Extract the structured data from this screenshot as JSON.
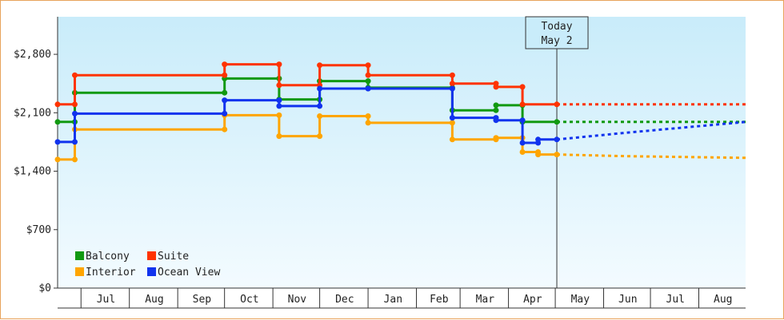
{
  "chart_data": {
    "type": "line",
    "step": true,
    "y_ticks": [
      "$0",
      "$700",
      "$1,400",
      "$2,100",
      "$2,800"
    ],
    "ylim": [
      0,
      3250
    ],
    "x_ticks": [
      "Jul",
      "Aug",
      "Sep",
      "Oct",
      "Nov",
      "Dec",
      "Jan",
      "Feb",
      "Mar",
      "Apr",
      "May",
      "Jun",
      "Jul",
      "Aug"
    ],
    "xlim": [
      "2018-06-16",
      "2019-08-31"
    ],
    "today": {
      "line1": "Today",
      "line2": "May 2",
      "date": "2019-05-02"
    },
    "legend_position": "bottom-left",
    "grid": false,
    "background": {
      "top": "#c9ecfa",
      "bottom": "#f3fbff"
    },
    "series": [
      {
        "name": "Balcony",
        "color": "#119911",
        "points": [
          [
            "2018-06-16",
            1990
          ],
          [
            "2018-06-27",
            1990
          ],
          [
            "2018-06-27",
            2340
          ],
          [
            "2018-10-01",
            2340
          ],
          [
            "2018-10-01",
            2510
          ],
          [
            "2018-11-05",
            2510
          ],
          [
            "2018-11-05",
            2260
          ],
          [
            "2018-12-01",
            2260
          ],
          [
            "2018-12-01",
            2480
          ],
          [
            "2019-01-01",
            2480
          ],
          [
            "2019-01-01",
            2400
          ],
          [
            "2019-02-24",
            2400
          ],
          [
            "2019-02-24",
            2130
          ],
          [
            "2019-03-24",
            2130
          ],
          [
            "2019-03-24",
            2190
          ],
          [
            "2019-04-10",
            2190
          ],
          [
            "2019-04-10",
            1990
          ],
          [
            "2019-05-02",
            1990
          ]
        ],
        "forecast": [
          [
            "2019-05-02",
            1990
          ],
          [
            "2019-08-31",
            1990
          ]
        ]
      },
      {
        "name": "Interior",
        "color": "#ffa500",
        "points": [
          [
            "2018-06-16",
            1540
          ],
          [
            "2018-06-27",
            1540
          ],
          [
            "2018-06-27",
            1900
          ],
          [
            "2018-10-01",
            1900
          ],
          [
            "2018-10-01",
            2070
          ],
          [
            "2018-11-05",
            2070
          ],
          [
            "2018-11-05",
            1820
          ],
          [
            "2018-12-01",
            1820
          ],
          [
            "2018-12-01",
            2060
          ],
          [
            "2019-01-01",
            2060
          ],
          [
            "2019-01-01",
            1980
          ],
          [
            "2019-02-24",
            1980
          ],
          [
            "2019-02-24",
            1780
          ],
          [
            "2019-03-24",
            1780
          ],
          [
            "2019-03-24",
            1800
          ],
          [
            "2019-04-10",
            1800
          ],
          [
            "2019-04-10",
            1630
          ],
          [
            "2019-04-20",
            1630
          ],
          [
            "2019-04-20",
            1600
          ],
          [
            "2019-05-02",
            1600
          ]
        ],
        "forecast": [
          [
            "2019-05-02",
            1600
          ],
          [
            "2019-06-15",
            1580
          ],
          [
            "2019-08-31",
            1560
          ]
        ]
      },
      {
        "name": "Suite",
        "color": "#ff3300",
        "points": [
          [
            "2018-06-16",
            2200
          ],
          [
            "2018-06-27",
            2200
          ],
          [
            "2018-06-27",
            2550
          ],
          [
            "2018-10-01",
            2550
          ],
          [
            "2018-10-01",
            2680
          ],
          [
            "2018-11-05",
            2680
          ],
          [
            "2018-11-05",
            2430
          ],
          [
            "2018-12-01",
            2430
          ],
          [
            "2018-12-01",
            2670
          ],
          [
            "2019-01-01",
            2670
          ],
          [
            "2019-01-01",
            2550
          ],
          [
            "2019-02-24",
            2550
          ],
          [
            "2019-02-24",
            2450
          ],
          [
            "2019-03-24",
            2450
          ],
          [
            "2019-03-24",
            2410
          ],
          [
            "2019-04-10",
            2410
          ],
          [
            "2019-04-10",
            2200
          ],
          [
            "2019-05-02",
            2200
          ]
        ],
        "forecast": [
          [
            "2019-05-02",
            2200
          ],
          [
            "2019-08-31",
            2200
          ]
        ]
      },
      {
        "name": "Ocean View",
        "color": "#1133ee",
        "points": [
          [
            "2018-06-16",
            1750
          ],
          [
            "2018-06-27",
            1750
          ],
          [
            "2018-06-27",
            2090
          ],
          [
            "2018-10-01",
            2090
          ],
          [
            "2018-10-01",
            2250
          ],
          [
            "2018-11-05",
            2250
          ],
          [
            "2018-11-05",
            2180
          ],
          [
            "2018-12-01",
            2180
          ],
          [
            "2018-12-01",
            2390
          ],
          [
            "2019-01-01",
            2390
          ],
          [
            "2019-01-01",
            2390
          ],
          [
            "2019-02-24",
            2390
          ],
          [
            "2019-02-24",
            2040
          ],
          [
            "2019-03-24",
            2040
          ],
          [
            "2019-03-24",
            2010
          ],
          [
            "2019-04-10",
            2010
          ],
          [
            "2019-04-10",
            1740
          ],
          [
            "2019-04-20",
            1740
          ],
          [
            "2019-04-20",
            1780
          ],
          [
            "2019-05-02",
            1780
          ]
        ],
        "forecast": [
          [
            "2019-05-02",
            1780
          ],
          [
            "2019-06-15",
            1860
          ],
          [
            "2019-08-31",
            1990
          ]
        ]
      }
    ],
    "legend_order": [
      "Balcony",
      "Suite",
      "Interior",
      "Ocean View"
    ]
  }
}
